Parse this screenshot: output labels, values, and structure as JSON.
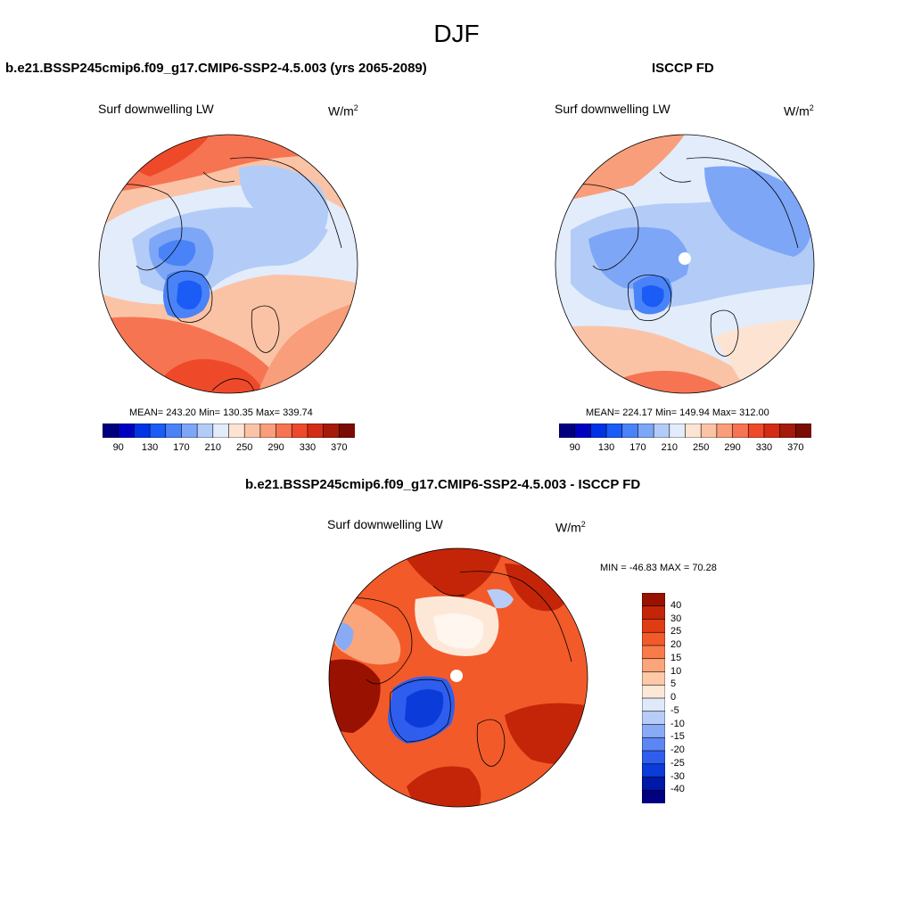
{
  "figure": {
    "title": "DJF"
  },
  "panels": [
    {
      "id": "model",
      "title": "b.e21.BSSP245cmip6.f09_g17.CMIP6-SSP2-4.5.003 (yrs 2065-2089)",
      "subtitle": "Surf downwelling LW",
      "units_base": "W/m",
      "units_exp": "2",
      "stats": {
        "mean": "243.20",
        "min": "130.35",
        "max": "339.74"
      },
      "stats_text": "MEAN= 243.20  Min= 130.35  Max= 339.74",
      "pole_mask": false
    },
    {
      "id": "obs",
      "title": "ISCCP FD",
      "subtitle": "Surf downwelling LW",
      "units_base": "W/m",
      "units_exp": "2",
      "stats": {
        "mean": "224.17",
        "min": "149.94",
        "max": "312.00"
      },
      "stats_text": "MEAN= 224.17  Min= 149.94  Max= 312.00",
      "pole_mask": true
    },
    {
      "id": "diff",
      "title": "b.e21.BSSP245cmip6.f09_g17.CMIP6-SSP2-4.5.003 - ISCCP FD",
      "subtitle": "Surf downwelling LW",
      "units_base": "W/m",
      "units_exp": "2",
      "stats": {
        "min": "-46.83",
        "max": "70.28"
      },
      "stats_text": "MIN = -46.83 MAX =  70.28",
      "pole_mask": true
    }
  ],
  "chart_data": [
    {
      "type": "heatmap",
      "projection": "north polar stereographic",
      "title": "b.e21.BSSP245cmip6.f09_g17.CMIP6-SSP2-4.5.003 (yrs 2065-2089)",
      "variable": "Surf downwelling LW",
      "units": "W/m2",
      "season": "DJF",
      "mean": 243.2,
      "min": 130.35,
      "max": 339.74,
      "colorbar": {
        "orientation": "horizontal",
        "levels": [
          90,
          110,
          130,
          150,
          170,
          190,
          210,
          230,
          250,
          270,
          290,
          310,
          330,
          350,
          370
        ],
        "tick_labels": [
          "90",
          "130",
          "170",
          "210",
          "250",
          "290",
          "330",
          "370"
        ],
        "colors": [
          "#00007f",
          "#0000c0",
          "#0033e6",
          "#1a5cf5",
          "#4a83f7",
          "#7ea6f7",
          "#b3ccf7",
          "#e2ecfb",
          "#fde4d2",
          "#fbc3a6",
          "#f99e7a",
          "#f67452",
          "#ee4a2a",
          "#d42b14",
          "#a51a0a",
          "#7a0c05"
        ]
      }
    },
    {
      "type": "heatmap",
      "projection": "north polar stereographic",
      "title": "ISCCP FD",
      "variable": "Surf downwelling LW",
      "units": "W/m2",
      "season": "DJF",
      "mean": 224.17,
      "min": 149.94,
      "max": 312.0,
      "colorbar": {
        "orientation": "horizontal",
        "levels": [
          90,
          110,
          130,
          150,
          170,
          190,
          210,
          230,
          250,
          270,
          290,
          310,
          330,
          350,
          370
        ],
        "tick_labels": [
          "90",
          "130",
          "170",
          "210",
          "250",
          "290",
          "330",
          "370"
        ],
        "colors": [
          "#00007f",
          "#0000c0",
          "#0033e6",
          "#1a5cf5",
          "#4a83f7",
          "#7ea6f7",
          "#b3ccf7",
          "#e2ecfb",
          "#fde4d2",
          "#fbc3a6",
          "#f99e7a",
          "#f67452",
          "#ee4a2a",
          "#d42b14",
          "#a51a0a",
          "#7a0c05"
        ]
      }
    },
    {
      "type": "heatmap",
      "projection": "north polar stereographic",
      "title": "b.e21.BSSP245cmip6.f09_g17.CMIP6-SSP2-4.5.003 - ISCCP FD",
      "variable": "Surf downwelling LW",
      "units": "W/m2",
      "min": -46.83,
      "max": 70.28,
      "colorbar": {
        "orientation": "vertical",
        "levels": [
          -40,
          -30,
          -25,
          -20,
          -15,
          -10,
          -5,
          0,
          5,
          10,
          15,
          20,
          25,
          30,
          40
        ],
        "tick_labels": [
          "40",
          "30",
          "25",
          "20",
          "15",
          "10",
          "5",
          "0",
          "-5",
          "-10",
          "-15",
          "-20",
          "-25",
          "-30",
          "-40"
        ],
        "colors_top_to_bottom": [
          "#991100",
          "#c42508",
          "#e03c14",
          "#f25a2a",
          "#f87b4a",
          "#fba57b",
          "#fdc9a6",
          "#fde8d8",
          "#dfe9fb",
          "#b7cdf8",
          "#89abf6",
          "#5c86f3",
          "#2f5eef",
          "#0b3bd8",
          "#0018a8",
          "#000080"
        ]
      }
    }
  ]
}
